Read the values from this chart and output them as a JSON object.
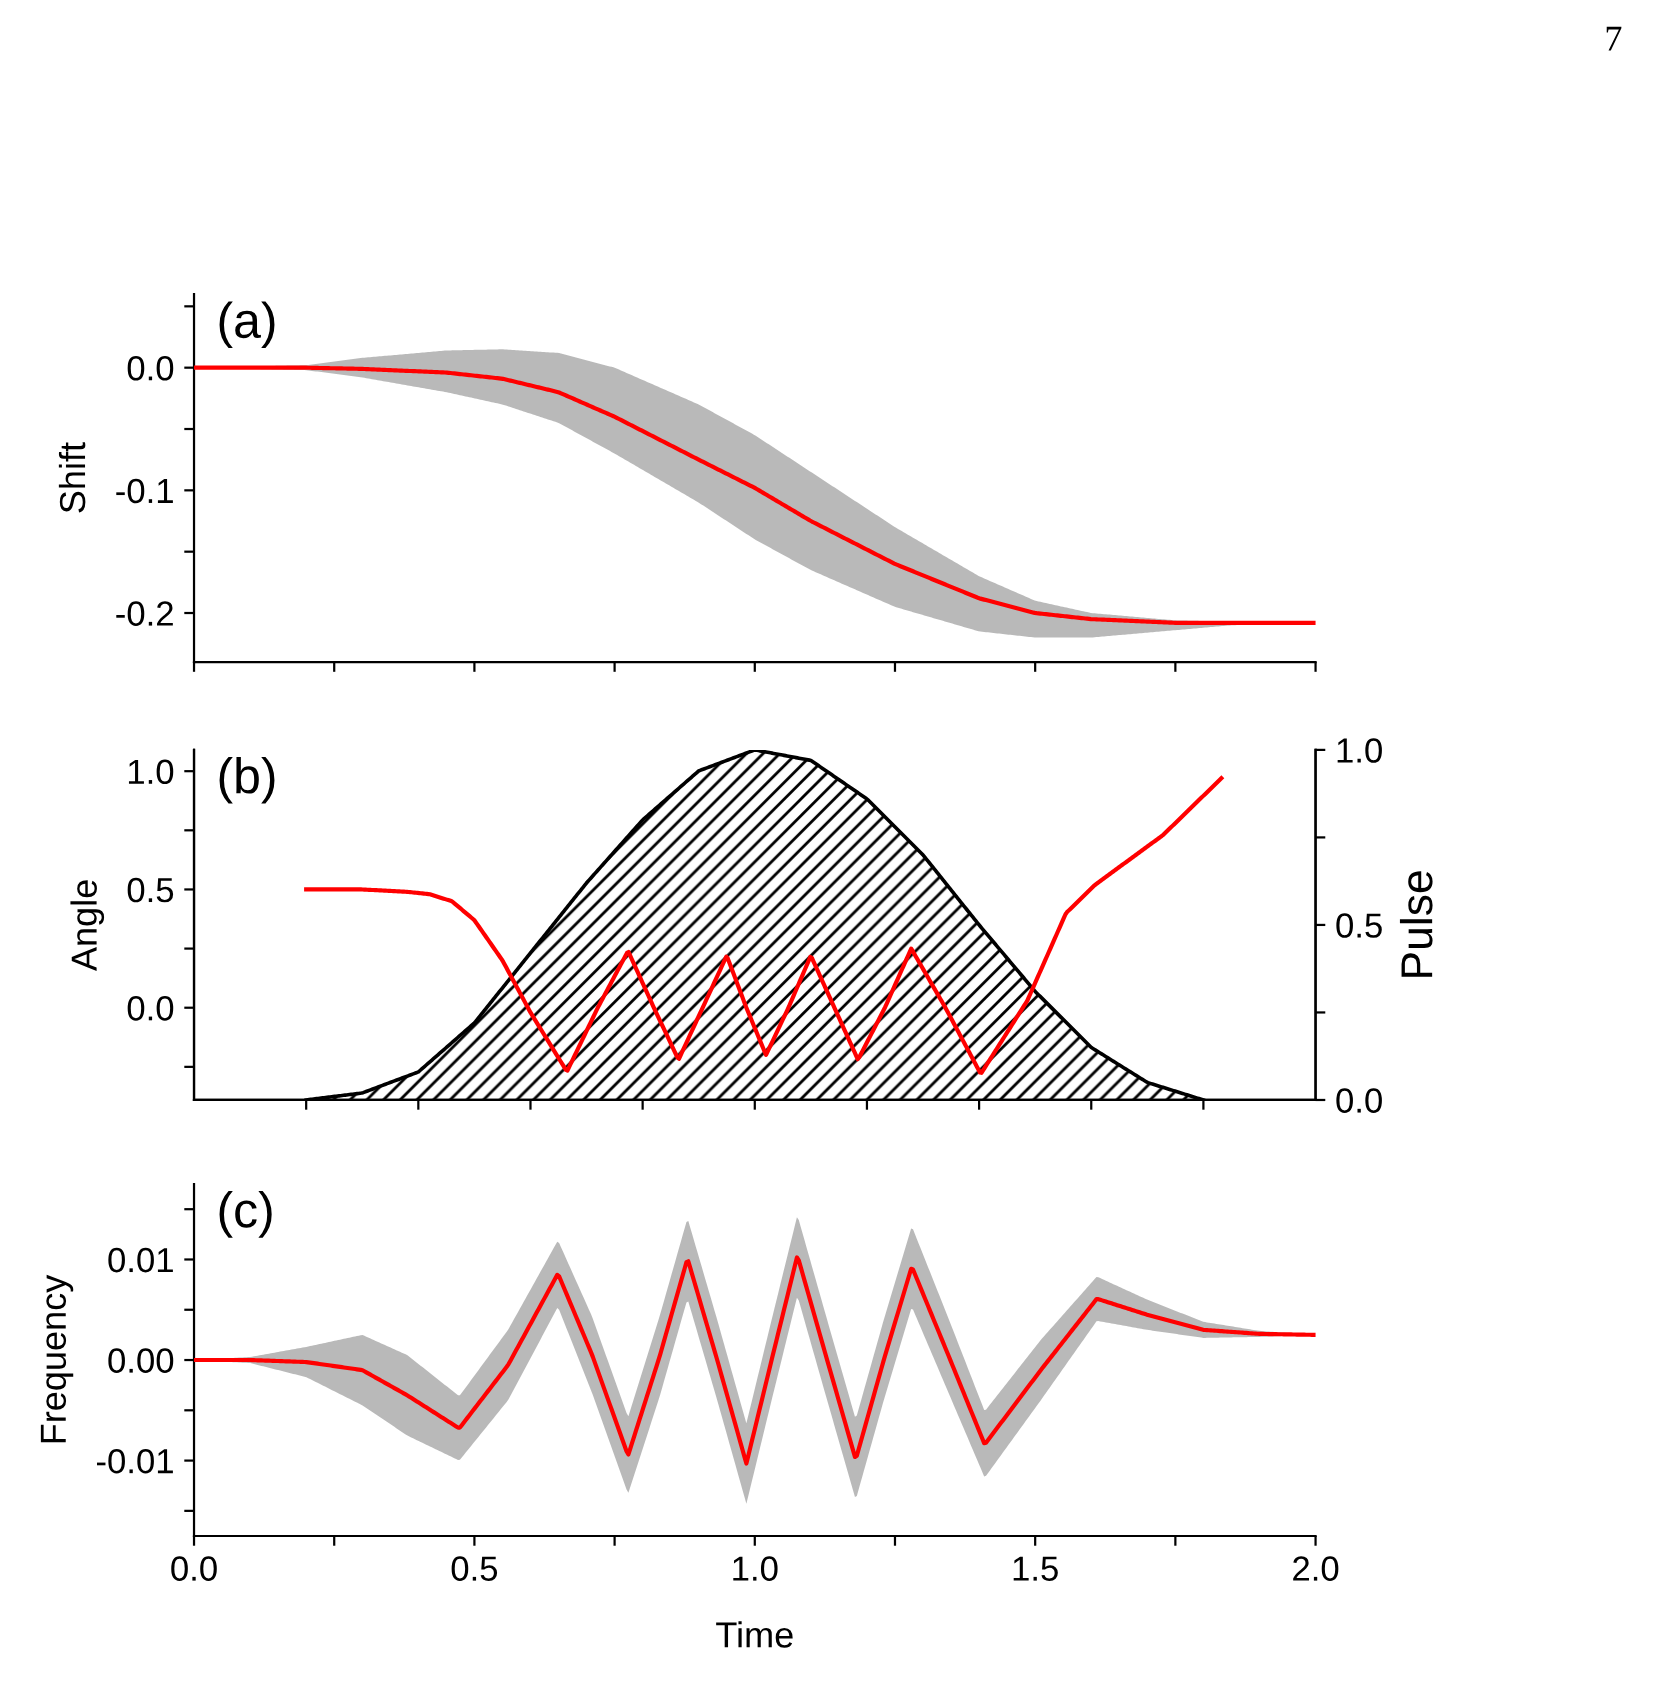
{
  "chart_data": [
    {
      "type": "line",
      "ylabel": "Shift",
      "annotations": [
        "(a)",
        "7"
      ],
      "xlim": [
        0,
        2
      ],
      "ylim": [
        -0.24,
        0.06
      ],
      "tick_labels": "y",
      "xticks": [
        0.0,
        {
          "value": 0.25,
          "label": null
        },
        0.5,
        {
          "value": 0.75,
          "label": null
        },
        1.0,
        {
          "value": 1.25,
          "label": null
        },
        1.5,
        {
          "value": 1.75,
          "label": null
        },
        2.0
      ],
      "yticks": [
        {
          "value": -0.2,
          "label": "-0.2"
        },
        {
          "value": -0.15,
          "label": null
        },
        {
          "value": -0.1,
          "label": "-0.1"
        },
        {
          "value": -0.05,
          "label": null
        },
        {
          "value": 0,
          "label": "0.0"
        },
        {
          "value": 0.05,
          "label": null
        }
      ],
      "series": [
        {
          "color": "#ff0000",
          "x": [
            0,
            0.2,
            0.3,
            0.45,
            0.55,
            0.65,
            0.75,
            0.9,
            1.0,
            1.1,
            1.25,
            1.4,
            1.5,
            1.6,
            1.75,
            1.85,
            2.0
          ],
          "values": [
            0,
            0,
            -0.001,
            -0.004,
            -0.009,
            -0.02,
            -0.04,
            -0.075,
            -0.098,
            -0.125,
            -0.16,
            -0.188,
            -0.2,
            -0.205,
            -0.208,
            -0.208,
            -0.208
          ],
          "lower": [
            0,
            -0.002,
            -0.008,
            -0.02,
            -0.03,
            -0.045,
            -0.07,
            -0.11,
            -0.14,
            -0.165,
            -0.195,
            -0.215,
            -0.22,
            -0.22,
            -0.214,
            -0.21,
            -0.208
          ],
          "upper": [
            0,
            0.002,
            0.008,
            0.014,
            0.015,
            0.012,
            0.0,
            -0.03,
            -0.055,
            -0.085,
            -0.13,
            -0.17,
            -0.19,
            -0.2,
            -0.206,
            -0.207,
            -0.208
          ]
        }
      ]
    },
    {
      "type": "line",
      "ylabel": "Angle",
      "y2label": "Pulse",
      "annotations": [
        "(b)"
      ],
      "xlim": [
        0,
        2
      ],
      "ylim": [
        -0.39,
        1.09
      ],
      "y2lim": [
        0,
        1
      ],
      "tick_labels": "y",
      "xticks": [
        {
          "value": 0.2,
          "label": null
        },
        {
          "value": 0.4,
          "label": null
        },
        {
          "value": 0.6,
          "label": null
        },
        {
          "value": 0.8,
          "label": null
        },
        {
          "value": 1.0,
          "label": null
        },
        {
          "value": 1.2,
          "label": null
        },
        {
          "value": 1.4,
          "label": null
        },
        {
          "value": 1.6,
          "label": null
        },
        {
          "value": 1.8,
          "label": null
        }
      ],
      "yticks": [
        {
          "value": -0.25,
          "label": null
        },
        {
          "value": 0,
          "label": "0.0"
        },
        {
          "value": 0.25,
          "label": null
        },
        0.5,
        {
          "value": 0.75,
          "label": null
        },
        {
          "value": 1,
          "label": "1.0"
        }
      ],
      "y2ticks": [
        {
          "value": 0,
          "label": "0.0"
        },
        {
          "value": 0.25,
          "label": null
        },
        0.5,
        {
          "value": 0.75,
          "label": null
        },
        {
          "value": 1,
          "label": "1.0"
        }
      ],
      "series": [
        {
          "type": "area",
          "axis": "y2",
          "color": "#000000",
          "x": [
            0.2,
            0.3,
            0.4,
            0.5,
            0.6,
            0.7,
            0.8,
            0.9,
            1.0,
            1.1,
            1.2,
            1.3,
            1.4,
            1.5,
            1.6,
            1.7,
            1.8
          ],
          "values": [
            0,
            0.02,
            0.08,
            0.22,
            0.42,
            0.62,
            0.8,
            0.94,
            1.0,
            0.97,
            0.86,
            0.7,
            0.5,
            0.31,
            0.15,
            0.05,
            0
          ]
        },
        {
          "color": "#ff0000",
          "x": [
            0.2,
            0.3,
            0.38,
            0.42,
            0.46,
            0.5,
            0.55,
            0.6,
            0.665,
            0.72,
            0.774,
            0.82,
            0.864,
            0.907,
            0.95,
            0.985,
            1.02,
            1.06,
            1.1,
            1.142,
            1.184,
            1.232,
            1.279,
            1.34,
            1.403,
            1.486,
            1.555,
            1.607,
            1.728,
            1.832
          ],
          "values": [
            0.5,
            0.5,
            0.49,
            0.48,
            0.45,
            0.37,
            0.2,
            -0.02,
            -0.27,
            0.0,
            0.24,
            0.0,
            -0.22,
            0.0,
            0.22,
            0.0,
            -0.2,
            0.0,
            0.22,
            0.0,
            -0.22,
            0.0,
            0.25,
            0.0,
            -0.28,
            0.03,
            0.4,
            0.52,
            0.73,
            0.97
          ]
        }
      ]
    },
    {
      "type": "line",
      "xlabel": "Time",
      "ylabel": "Frequency",
      "annotations": [
        "(c)"
      ],
      "xlim": [
        0,
        2
      ],
      "ylim": [
        -0.0175,
        0.0175
      ],
      "xticks": [
        {
          "value": 0,
          "label": "0.0"
        },
        {
          "value": 0.25,
          "label": null
        },
        0.5,
        {
          "value": 0.75,
          "label": null
        },
        {
          "value": 1,
          "label": "1.0"
        },
        {
          "value": 1.25,
          "label": null
        },
        1.5,
        {
          "value": 1.75,
          "label": null
        },
        {
          "value": 2,
          "label": "2.0"
        }
      ],
      "yticks": [
        {
          "value": -0.015,
          "label": null
        },
        {
          "value": -0.01,
          "label": "-0.01"
        },
        {
          "value": -0.005,
          "label": null
        },
        {
          "value": 0,
          "label": "0.00"
        },
        {
          "value": 0.005,
          "label": null
        },
        0.01,
        {
          "value": 0.015,
          "label": null
        }
      ],
      "series": [
        {
          "color": "#ff0000",
          "x": [
            0,
            0.1,
            0.2,
            0.3,
            0.38,
            0.473,
            0.56,
            0.649,
            0.71,
            0.774,
            0.83,
            0.88,
            0.933,
            0.985,
            1.03,
            1.076,
            1.128,
            1.18,
            1.23,
            1.28,
            1.345,
            1.41,
            1.51,
            1.61,
            1.7,
            1.8,
            1.9,
            2.0
          ],
          "values": [
            0,
            0,
            -0.0002,
            -0.001,
            -0.0035,
            -0.0068,
            -0.0005,
            0.0086,
            0.0005,
            -0.0095,
            0.0003,
            0.0101,
            0.0,
            -0.0103,
            0.0,
            0.0104,
            0.0002,
            -0.0099,
            0.0,
            0.0093,
            0.0005,
            -0.0084,
            -0.001,
            0.0061,
            0.0045,
            0.003,
            0.0026,
            0.0025
          ],
          "lower": [
            0,
            -0.0003,
            -0.0017,
            -0.0045,
            -0.0075,
            -0.01,
            -0.004,
            0.0053,
            -0.0033,
            -0.0133,
            -0.0037,
            0.0061,
            -0.004,
            -0.0143,
            -0.004,
            0.0064,
            -0.0038,
            -0.0139,
            -0.004,
            0.0053,
            -0.0032,
            -0.0117,
            -0.004,
            0.0039,
            0.003,
            0.0022,
            0.0023,
            0.0025
          ],
          "upper": [
            0,
            0.0003,
            0.0013,
            0.0025,
            0.0005,
            -0.0036,
            0.003,
            0.0119,
            0.0043,
            -0.0057,
            0.0043,
            0.0141,
            0.004,
            -0.0063,
            0.004,
            0.0144,
            0.0042,
            -0.0059,
            0.004,
            0.0133,
            0.0042,
            -0.0051,
            0.002,
            0.0083,
            0.006,
            0.0038,
            0.0029,
            0.0025
          ]
        }
      ]
    }
  ]
}
